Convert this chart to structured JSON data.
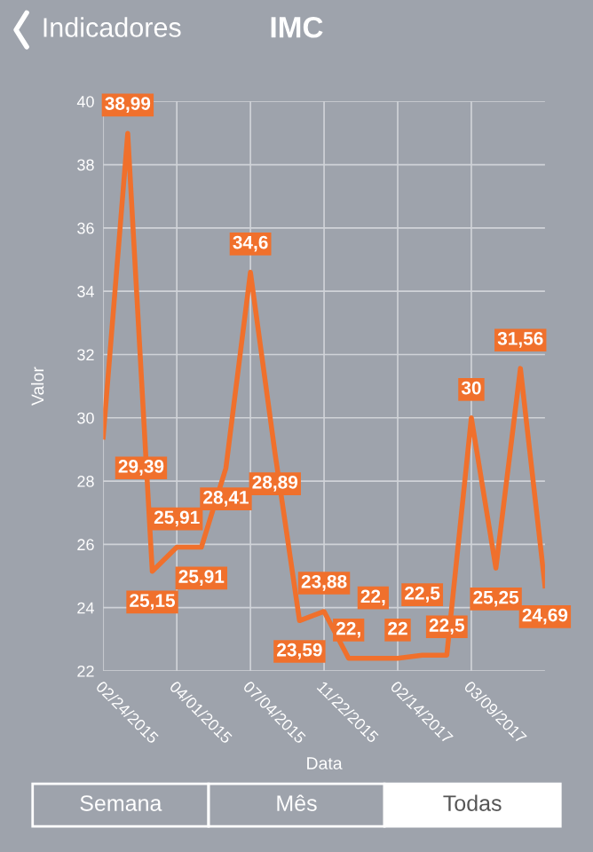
{
  "chart_data": {
    "type": "line",
    "title": "IMC",
    "xlabel": "Data",
    "ylabel": "Valor",
    "annotations": [
      "Indicadores",
      "Semana",
      "Mês",
      "Todas"
    ],
    "categories": [
      "02/24/2015",
      null,
      null,
      "04/01/2015",
      null,
      null,
      "07/04/2015",
      null,
      null,
      "11/22/2015",
      null,
      null,
      "02/14/2017",
      null,
      null,
      "03/09/2017",
      null,
      null,
      null
    ],
    "series": [
      {
        "color": "#f0702c",
        "values": [
          29.39,
          38.99,
          25.15,
          25.91,
          25.91,
          28.41,
          34.6,
          28.89,
          23.59,
          23.88,
          22.4,
          22.4,
          22.4,
          22.5,
          22.5,
          30,
          25.25,
          31.56,
          24.69
        ],
        "value_labels": [
          "29,39",
          "38,99",
          "25,15",
          "25,91",
          "25,91",
          "28,41",
          "34,6",
          "28,89",
          "23,59",
          "23,88",
          "22,",
          "22,",
          "22",
          "22,5",
          "22,5",
          "30",
          "25,25",
          "31,56",
          "24,69"
        ]
      }
    ],
    "ylim": [
      22,
      40
    ],
    "yticks": [
      22,
      24,
      26,
      28,
      30,
      32,
      34,
      36,
      38,
      40
    ],
    "grid": true,
    "marker": "none",
    "line_style": "solid"
  }
}
